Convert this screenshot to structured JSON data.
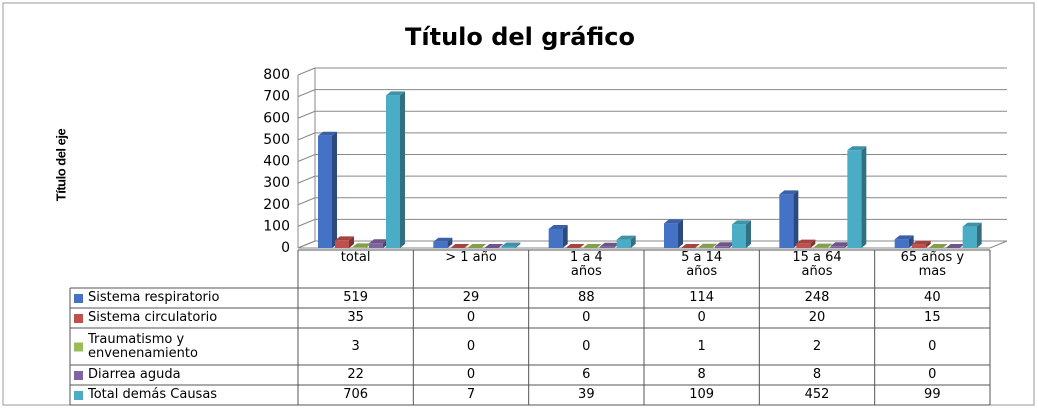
{
  "chart_data": {
    "type": "bar3d",
    "title": "Título del gráfico",
    "y_axis_label": "Título del eje",
    "categories": [
      "total",
      "> 1 año",
      "1 a 4 años",
      "5 a 14 años",
      "15 a 64 años",
      "65 años y mas"
    ],
    "series": [
      {
        "name": "Sistema respiratorio",
        "color": "#4472c4",
        "values": [
          519,
          29,
          88,
          114,
          248,
          40
        ]
      },
      {
        "name": "Sistema circulatorio",
        "color": "#c0504d",
        "values": [
          35,
          0,
          0,
          0,
          20,
          15
        ]
      },
      {
        "name": "Traumatismo y envenenamiento",
        "color": "#9bbb59",
        "values": [
          3,
          0,
          0,
          1,
          2,
          0
        ]
      },
      {
        "name": "Diarrea aguda",
        "color": "#8064a2",
        "values": [
          22,
          0,
          6,
          8,
          8,
          0
        ]
      },
      {
        "name": "Total demás Causas",
        "color": "#4bacc6",
        "values": [
          706,
          7,
          39,
          109,
          452,
          99
        ]
      }
    ],
    "ylim": [
      0,
      800
    ],
    "yticks": [
      0,
      100,
      200,
      300,
      400,
      500,
      600,
      700,
      800
    ],
    "grid": true
  }
}
